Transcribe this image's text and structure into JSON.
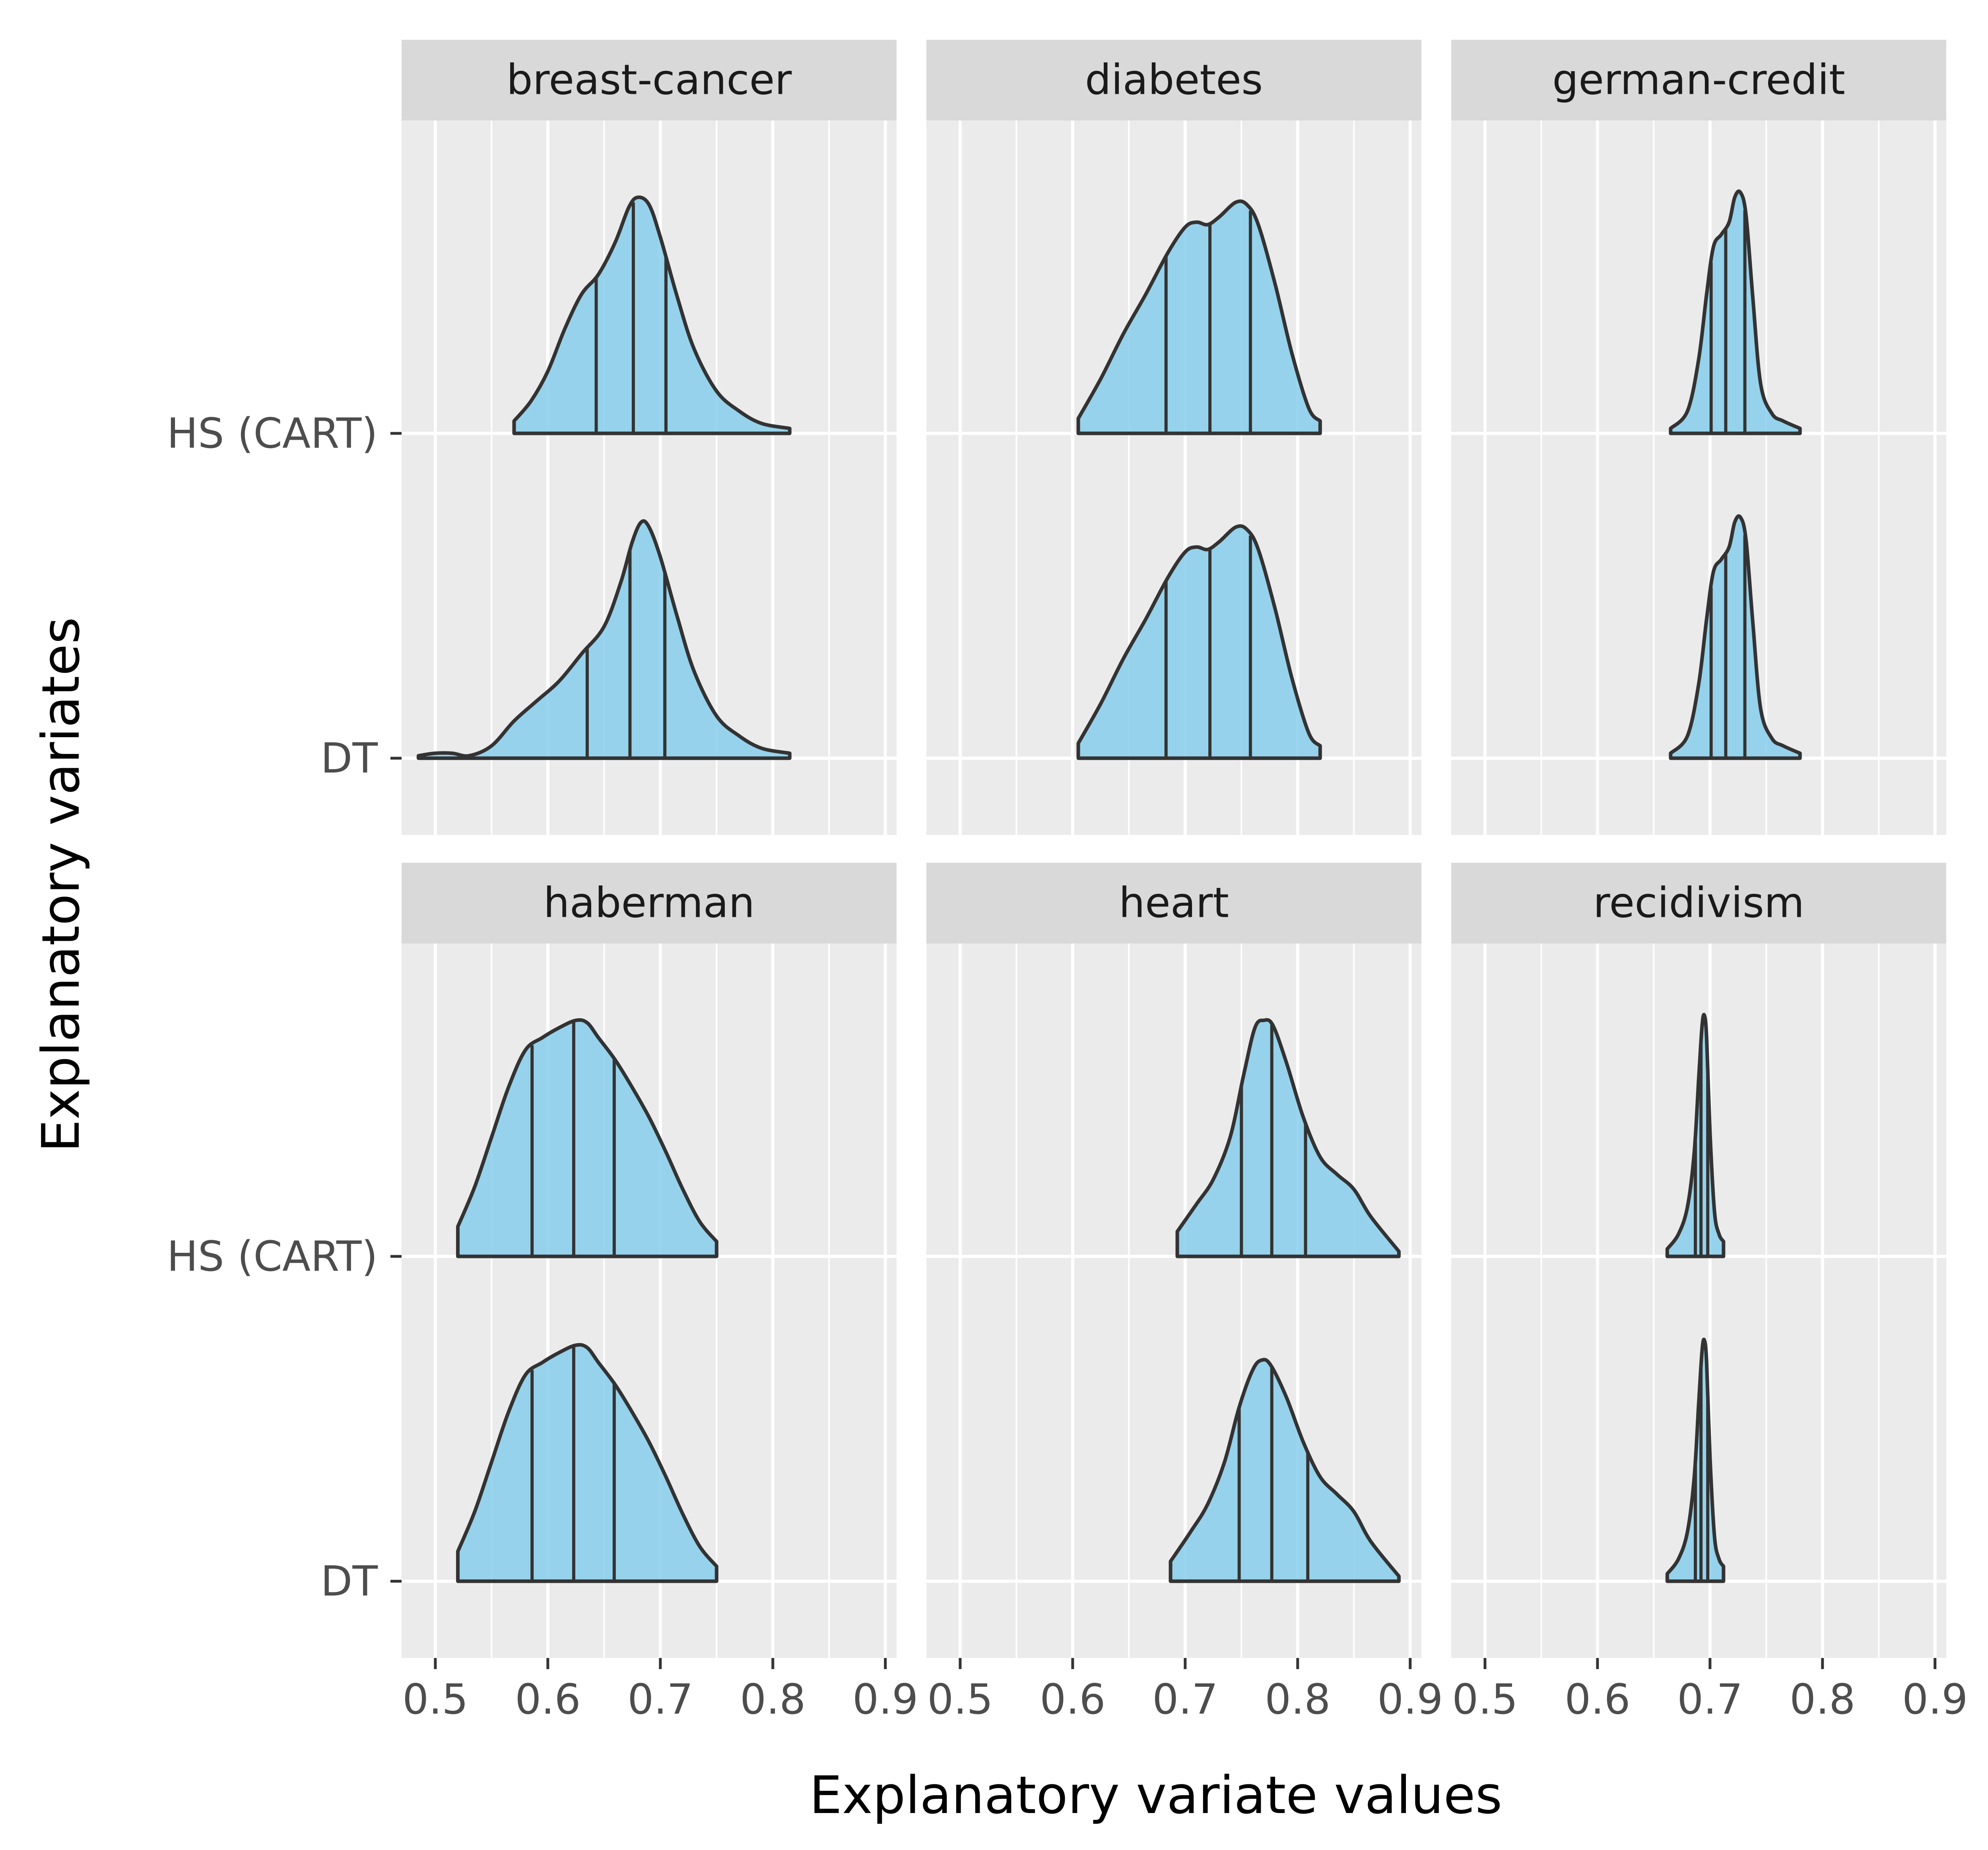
{
  "chart_data": {
    "type": "density_ridges",
    "xlabel": "Explanatory variate values",
    "ylabel": "Explanatory variates",
    "xlim": [
      0.47,
      0.91
    ],
    "x_ticks": [
      "0.5",
      "0.6",
      "0.7",
      "0.8",
      "0.9"
    ],
    "x_tick_values": [
      0.5,
      0.6,
      0.7,
      0.8,
      0.9
    ],
    "y_categories": [
      "HS (CART)",
      "DT"
    ],
    "quantile_lines": [
      0.25,
      0.5,
      0.75
    ],
    "grid": true,
    "colors": {
      "fill": "#87CEEB",
      "outline": "#333333",
      "panel_background": "#EBEBEB",
      "strip_background": "#D9D9D9",
      "grid": "#ffffff",
      "axis_text": "#4D4D4D",
      "title_text": "#000000"
    },
    "panels": [
      {
        "title": "breast-cancer",
        "series": [
          {
            "name": "HS (CART)",
            "x": [
              0.57,
              0.585,
              0.6,
              0.615,
              0.63,
              0.645,
              0.66,
              0.672,
              0.68,
              0.69,
              0.7,
              0.715,
              0.73,
              0.75,
              0.77,
              0.79,
              0.815
            ],
            "y": [
              0.05,
              0.13,
              0.25,
              0.42,
              0.56,
              0.64,
              0.77,
              0.91,
              0.95,
              0.92,
              0.79,
              0.55,
              0.34,
              0.17,
              0.09,
              0.04,
              0.02
            ],
            "quantiles": [
              0.643,
              0.676,
              0.705
            ]
          },
          {
            "name": "DT",
            "x": [
              0.485,
              0.5,
              0.515,
              0.53,
              0.55,
              0.57,
              0.59,
              0.61,
              0.63,
              0.65,
              0.665,
              0.675,
              0.683,
              0.69,
              0.7,
              0.715,
              0.73,
              0.75,
              0.77,
              0.79,
              0.815
            ],
            "y": [
              0.01,
              0.02,
              0.02,
              0.01,
              0.05,
              0.15,
              0.23,
              0.31,
              0.42,
              0.53,
              0.71,
              0.87,
              0.95,
              0.93,
              0.81,
              0.57,
              0.35,
              0.17,
              0.09,
              0.04,
              0.02
            ],
            "quantiles": [
              0.635,
              0.673,
              0.704
            ]
          }
        ]
      },
      {
        "title": "diabetes",
        "series": [
          {
            "name": "HS (CART)",
            "x": [
              0.605,
              0.625,
              0.645,
              0.665,
              0.685,
              0.7,
              0.71,
              0.72,
              0.73,
              0.745,
              0.755,
              0.765,
              0.78,
              0.795,
              0.81,
              0.82
            ],
            "y": [
              0.06,
              0.22,
              0.4,
              0.56,
              0.73,
              0.83,
              0.85,
              0.84,
              0.87,
              0.93,
              0.92,
              0.84,
              0.6,
              0.32,
              0.1,
              0.05
            ],
            "quantiles": [
              0.683,
              0.722,
              0.758
            ]
          },
          {
            "name": "DT",
            "x": [
              0.605,
              0.625,
              0.645,
              0.665,
              0.685,
              0.7,
              0.71,
              0.72,
              0.73,
              0.745,
              0.755,
              0.765,
              0.78,
              0.795,
              0.81,
              0.82
            ],
            "y": [
              0.06,
              0.22,
              0.4,
              0.56,
              0.73,
              0.83,
              0.85,
              0.84,
              0.87,
              0.93,
              0.92,
              0.84,
              0.6,
              0.32,
              0.1,
              0.05
            ],
            "quantiles": [
              0.683,
              0.722,
              0.758
            ]
          }
        ]
      },
      {
        "title": "german-credit",
        "series": [
          {
            "name": "HS (CART)",
            "x": [
              0.665,
              0.68,
              0.69,
              0.697,
              0.703,
              0.71,
              0.717,
              0.722,
              0.727,
              0.732,
              0.738,
              0.745,
              0.755,
              0.765,
              0.78
            ],
            "y": [
              0.02,
              0.09,
              0.3,
              0.56,
              0.75,
              0.8,
              0.85,
              0.95,
              0.97,
              0.88,
              0.55,
              0.2,
              0.08,
              0.05,
              0.02
            ],
            "quantiles": [
              0.701,
              0.714,
              0.731
            ]
          },
          {
            "name": "DT",
            "x": [
              0.665,
              0.68,
              0.69,
              0.697,
              0.703,
              0.71,
              0.717,
              0.722,
              0.727,
              0.732,
              0.738,
              0.745,
              0.755,
              0.765,
              0.78
            ],
            "y": [
              0.02,
              0.09,
              0.3,
              0.56,
              0.75,
              0.8,
              0.85,
              0.95,
              0.97,
              0.88,
              0.55,
              0.2,
              0.08,
              0.05,
              0.02
            ],
            "quantiles": [
              0.701,
              0.714,
              0.731
            ]
          }
        ]
      },
      {
        "title": "haberman",
        "series": [
          {
            "name": "HS (CART)",
            "x": [
              0.52,
              0.535,
              0.55,
              0.565,
              0.58,
              0.595,
              0.61,
              0.625,
              0.635,
              0.645,
              0.66,
              0.675,
              0.69,
              0.705,
              0.72,
              0.735,
              0.75
            ],
            "y": [
              0.12,
              0.28,
              0.48,
              0.68,
              0.83,
              0.88,
              0.92,
              0.95,
              0.94,
              0.88,
              0.79,
              0.68,
              0.56,
              0.42,
              0.27,
              0.14,
              0.06
            ],
            "quantiles": [
              0.586,
              0.623,
              0.659
            ]
          },
          {
            "name": "DT",
            "x": [
              0.52,
              0.535,
              0.55,
              0.565,
              0.58,
              0.595,
              0.61,
              0.625,
              0.635,
              0.645,
              0.66,
              0.675,
              0.69,
              0.705,
              0.72,
              0.735,
              0.75
            ],
            "y": [
              0.12,
              0.28,
              0.48,
              0.68,
              0.83,
              0.88,
              0.92,
              0.95,
              0.94,
              0.88,
              0.79,
              0.68,
              0.56,
              0.42,
              0.27,
              0.14,
              0.06
            ],
            "quantiles": [
              0.586,
              0.623,
              0.659
            ]
          }
        ]
      },
      {
        "title": "heart",
        "series": [
          {
            "name": "HS (CART)",
            "x": [
              0.693,
              0.71,
              0.725,
              0.74,
              0.752,
              0.762,
              0.77,
              0.778,
              0.79,
              0.805,
              0.82,
              0.835,
              0.85,
              0.865,
              0.89
            ],
            "y": [
              0.1,
              0.21,
              0.31,
              0.48,
              0.73,
              0.92,
              0.95,
              0.93,
              0.78,
              0.56,
              0.4,
              0.33,
              0.27,
              0.16,
              0.02
            ],
            "quantiles": [
              0.75,
              0.777,
              0.807
            ]
          },
          {
            "name": "DT",
            "x": [
              0.687,
              0.705,
              0.72,
              0.735,
              0.748,
              0.76,
              0.768,
              0.776,
              0.79,
              0.805,
              0.82,
              0.835,
              0.85,
              0.865,
              0.89
            ],
            "y": [
              0.08,
              0.2,
              0.31,
              0.48,
              0.7,
              0.85,
              0.89,
              0.87,
              0.74,
              0.56,
              0.42,
              0.35,
              0.28,
              0.16,
              0.02
            ],
            "quantiles": [
              0.748,
              0.777,
              0.809
            ]
          }
        ]
      },
      {
        "title": "recidivism",
        "series": [
          {
            "name": "HS (CART)",
            "x": [
              0.662,
              0.672,
              0.68,
              0.686,
              0.69,
              0.693,
              0.695,
              0.697,
              0.7,
              0.704,
              0.708,
              0.712
            ],
            "y": [
              0.03,
              0.09,
              0.2,
              0.42,
              0.72,
              0.93,
              0.97,
              0.88,
              0.5,
              0.18,
              0.09,
              0.06
            ],
            "quantiles": [
              0.687,
              0.692,
              0.698
            ]
          },
          {
            "name": "DT",
            "x": [
              0.662,
              0.672,
              0.68,
              0.686,
              0.69,
              0.693,
              0.695,
              0.697,
              0.7,
              0.704,
              0.708,
              0.712
            ],
            "y": [
              0.03,
              0.09,
              0.2,
              0.42,
              0.72,
              0.93,
              0.97,
              0.88,
              0.5,
              0.18,
              0.09,
              0.06
            ],
            "quantiles": [
              0.687,
              0.692,
              0.698
            ]
          }
        ]
      }
    ]
  }
}
